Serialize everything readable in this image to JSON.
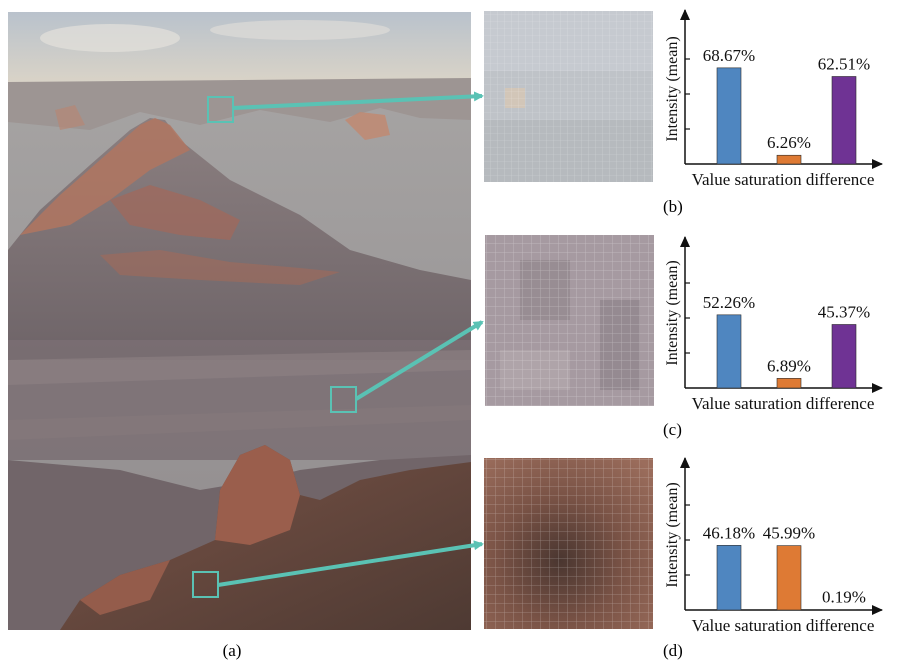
{
  "figure": {
    "captions": [
      "(a)",
      "(b)",
      "(c)",
      "(d)"
    ]
  },
  "colors": {
    "value": "#4f86c0",
    "saturation": "#de7a34",
    "difference": "#6f3394",
    "callout": "#5ac2b4"
  },
  "chart_data": [
    {
      "type": "bar",
      "panel": "(b)",
      "categories": [
        "Value",
        "saturation",
        "difference"
      ],
      "values": [
        68.67,
        6.26,
        62.51
      ],
      "data_labels": [
        "68.67%",
        "6.26%",
        "62.51%"
      ],
      "ylabel": "Intensity (mean)",
      "xlabel": "Value saturation difference",
      "ylim": [
        0,
        100
      ],
      "grid": false
    },
    {
      "type": "bar",
      "panel": "(c)",
      "categories": [
        "Value",
        "saturation",
        "difference"
      ],
      "values": [
        52.26,
        6.89,
        45.37
      ],
      "data_labels": [
        "52.26%",
        "6.89%",
        "45.37%"
      ],
      "ylabel": "Intensity (mean)",
      "xlabel": "Value saturation difference",
      "ylim": [
        0,
        100
      ],
      "grid": false
    },
    {
      "type": "bar",
      "panel": "(d)",
      "categories": [
        "Value",
        "saturation",
        "difference"
      ],
      "values": [
        46.18,
        45.99,
        0.19
      ],
      "data_labels": [
        "46.18%",
        "45.99%",
        "0.19%"
      ],
      "ylabel": "Intensity (mean)",
      "xlabel": "Value saturation difference",
      "ylim": [
        0,
        100
      ],
      "grid": false
    }
  ]
}
